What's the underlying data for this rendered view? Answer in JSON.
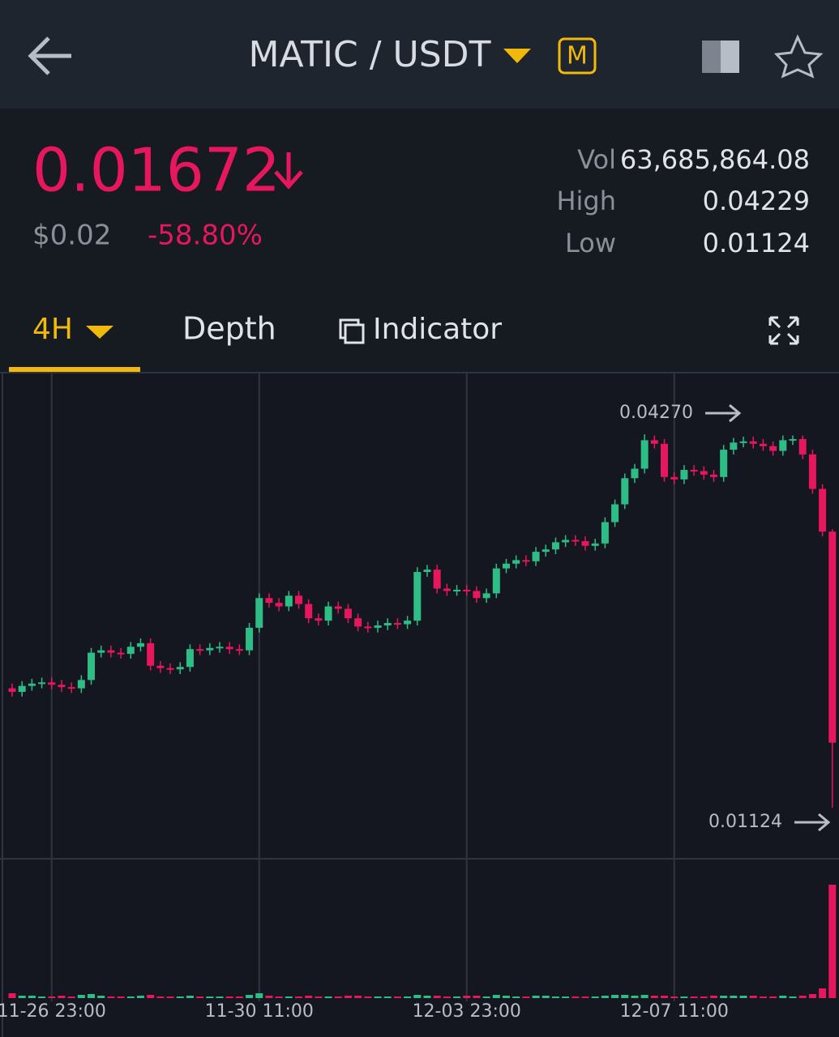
{
  "header": {
    "pair": "MATIC / USDT",
    "badge": "M"
  },
  "ticker": {
    "price": "0.01672",
    "usd": "$0.02",
    "change": "-58.80%",
    "vol_label": "Vol",
    "vol": "63,685,864.08",
    "high_label": "High",
    "high": "0.04229",
    "low_label": "Low",
    "low": "0.01124"
  },
  "tabs": [
    "4H",
    "Depth",
    "Indicator"
  ],
  "chart_data": {
    "type": "candlestick",
    "up_color": "#2ebd85",
    "down_color": "#e6175c",
    "grid": true,
    "ylim": [
      0.00694,
      0.04789
    ],
    "xticks": [
      {
        "value": 4,
        "label": "11-26 23:00"
      },
      {
        "value": 25,
        "label": "11-30 11:00"
      },
      {
        "value": 46,
        "label": "12-03 23:00"
      },
      {
        "value": 67,
        "label": "12-07 11:00"
      }
    ],
    "max_marker": {
      "value": 0.0427,
      "label": "0.04270"
    },
    "min_marker": {
      "value": 0.01124,
      "label": "0.01124"
    },
    "open": [
      0.0213,
      0.021,
      0.0215,
      0.0217,
      0.0218,
      0.0216,
      0.0214,
      0.0213,
      0.022,
      0.0243,
      0.0245,
      0.0243,
      0.0242,
      0.0248,
      0.0251,
      0.0232,
      0.023,
      0.0229,
      0.0231,
      0.0246,
      0.0245,
      0.0247,
      0.0248,
      0.0246,
      0.0245,
      0.0264,
      0.0289,
      0.0285,
      0.0282,
      0.0291,
      0.0284,
      0.0272,
      0.027,
      0.0282,
      0.028,
      0.0272,
      0.0265,
      0.0264,
      0.0266,
      0.0268,
      0.0267,
      0.027,
      0.0311,
      0.0313,
      0.0297,
      0.0295,
      0.0296,
      0.0295,
      0.0289,
      0.0293,
      0.0314,
      0.0318,
      0.0321,
      0.032,
      0.0328,
      0.033,
      0.0336,
      0.0338,
      0.0337,
      0.0333,
      0.0335,
      0.0353,
      0.0368,
      0.039,
      0.0398,
      0.0422,
      0.0419,
      0.0391,
      0.0389,
      0.0397,
      0.0396,
      0.0393,
      0.0391,
      0.0414,
      0.042,
      0.0421,
      0.0419,
      0.0417,
      0.0413,
      0.0422,
      0.0423,
      0.041,
      0.0381,
      0.0345
    ],
    "high": [
      0.0217,
      0.0219,
      0.0221,
      0.0222,
      0.0222,
      0.022,
      0.0218,
      0.0224,
      0.0247,
      0.0249,
      0.0249,
      0.0247,
      0.0252,
      0.0255,
      0.0255,
      0.0236,
      0.0234,
      0.0235,
      0.025,
      0.025,
      0.0251,
      0.0252,
      0.0252,
      0.025,
      0.0268,
      0.0293,
      0.0293,
      0.0289,
      0.0295,
      0.0295,
      0.0288,
      0.0276,
      0.0286,
      0.0286,
      0.0284,
      0.0276,
      0.0269,
      0.027,
      0.0272,
      0.0272,
      0.0274,
      0.0315,
      0.0317,
      0.0317,
      0.0301,
      0.03,
      0.03,
      0.0299,
      0.0297,
      0.0318,
      0.0322,
      0.0325,
      0.0325,
      0.0332,
      0.0334,
      0.034,
      0.0342,
      0.0342,
      0.0341,
      0.0339,
      0.0357,
      0.0372,
      0.0394,
      0.0402,
      0.0427,
      0.0426,
      0.0423,
      0.0395,
      0.0401,
      0.0401,
      0.04,
      0.0397,
      0.0418,
      0.0424,
      0.0425,
      0.0425,
      0.0423,
      0.0421,
      0.0426,
      0.0426,
      0.0426,
      0.0414,
      0.0385,
      0.0347
    ],
    "low": [
      0.0206,
      0.0206,
      0.0211,
      0.0213,
      0.0212,
      0.021,
      0.0209,
      0.0209,
      0.0216,
      0.0239,
      0.0239,
      0.0238,
      0.0238,
      0.0244,
      0.0228,
      0.0226,
      0.0225,
      0.0225,
      0.0227,
      0.0241,
      0.0241,
      0.0243,
      0.0242,
      0.0241,
      0.0241,
      0.026,
      0.0281,
      0.0278,
      0.0278,
      0.028,
      0.0268,
      0.0266,
      0.0266,
      0.0276,
      0.0268,
      0.0261,
      0.026,
      0.026,
      0.0262,
      0.0263,
      0.0263,
      0.0266,
      0.0307,
      0.0293,
      0.0291,
      0.0291,
      0.0291,
      0.0285,
      0.0285,
      0.0289,
      0.031,
      0.0314,
      0.0316,
      0.0316,
      0.0324,
      0.0326,
      0.0332,
      0.0333,
      0.0329,
      0.0329,
      0.0331,
      0.0349,
      0.0364,
      0.0386,
      0.0394,
      0.0415,
      0.0387,
      0.0385,
      0.0385,
      0.0392,
      0.0389,
      0.0387,
      0.0387,
      0.041,
      0.0416,
      0.0415,
      0.0413,
      0.0409,
      0.0409,
      0.0418,
      0.0406,
      0.0377,
      0.0341,
      0.01124
    ],
    "close": [
      0.021,
      0.0215,
      0.0217,
      0.0218,
      0.0216,
      0.0214,
      0.0213,
      0.022,
      0.0243,
      0.0245,
      0.0243,
      0.0242,
      0.0248,
      0.0251,
      0.0232,
      0.023,
      0.0229,
      0.0231,
      0.0246,
      0.0245,
      0.0247,
      0.0248,
      0.0246,
      0.0245,
      0.0264,
      0.0289,
      0.0285,
      0.0282,
      0.0291,
      0.0284,
      0.0272,
      0.027,
      0.0282,
      0.028,
      0.0272,
      0.0265,
      0.0264,
      0.0266,
      0.0268,
      0.0267,
      0.027,
      0.0311,
      0.0313,
      0.0297,
      0.0295,
      0.0296,
      0.0295,
      0.0289,
      0.0293,
      0.0314,
      0.0318,
      0.0321,
      0.032,
      0.0328,
      0.033,
      0.0336,
      0.0338,
      0.0337,
      0.0333,
      0.0335,
      0.0353,
      0.0368,
      0.039,
      0.0398,
      0.0422,
      0.0419,
      0.0391,
      0.0389,
      0.0397,
      0.0396,
      0.0393,
      0.0391,
      0.0414,
      0.042,
      0.0421,
      0.0419,
      0.0417,
      0.0413,
      0.0422,
      0.0423,
      0.041,
      0.0381,
      0.0345,
      0.01672
    ],
    "volume": [
      6,
      3,
      3,
      2,
      2,
      3,
      2,
      4,
      5,
      3,
      2,
      2,
      2,
      3,
      4,
      2,
      2,
      2,
      3,
      2,
      2,
      2,
      2,
      2,
      4,
      6,
      3,
      2,
      2,
      2,
      3,
      2,
      2,
      2,
      3,
      3,
      2,
      2,
      2,
      2,
      2,
      4,
      3,
      3,
      2,
      2,
      3,
      3,
      2,
      4,
      3,
      2,
      2,
      3,
      3,
      2,
      2,
      2,
      2,
      2,
      3,
      4,
      4,
      3,
      4,
      3,
      3,
      2,
      2,
      2,
      2,
      3,
      3,
      3,
      3,
      3,
      2,
      2,
      3,
      2,
      3,
      5,
      12,
      140
    ]
  }
}
